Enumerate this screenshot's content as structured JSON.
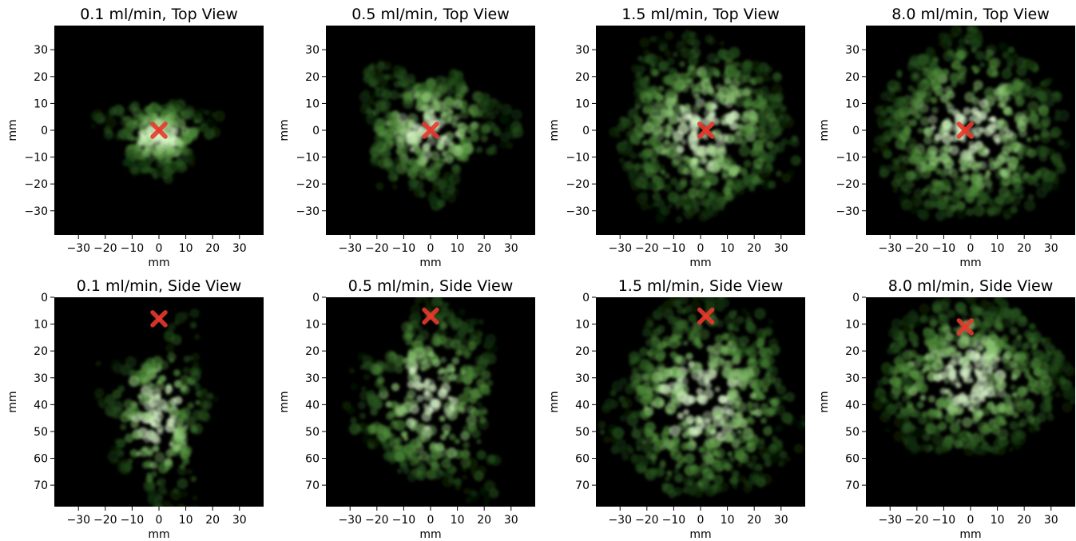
{
  "figure": {
    "background": "#ffffff",
    "panel_background": "#000000",
    "plume_colors": [
      "#0f2c0a",
      "#27541e",
      "#4f8c3a",
      "#8fc876",
      "#d9f5c9"
    ],
    "marker_color": "#e8392b",
    "marker_symbol": "X"
  },
  "chart_data": [
    {
      "type": "heatmap",
      "view": "top",
      "title": "0.1 ml/min, Top View",
      "xlabel": "mm",
      "ylabel": "mm",
      "xlim": [
        -39,
        39
      ],
      "ylim": [
        -39,
        39
      ],
      "y_inverted": false,
      "xticks": [
        -30,
        -20,
        -10,
        0,
        10,
        20,
        30
      ],
      "yticks": [
        30,
        20,
        10,
        0,
        -10,
        -20,
        -30
      ],
      "xtick_labels": [
        "−30",
        "−20",
        "−10",
        "0",
        "10",
        "20",
        "30"
      ],
      "ytick_labels": [
        "30",
        "20",
        "10",
        "0",
        "−10",
        "−20",
        "−30"
      ],
      "marker": [
        0,
        0
      ],
      "grid": false,
      "plume": {
        "cx": 0,
        "cy": -2,
        "rx": 18,
        "ry": 14,
        "irregularity": 0.85,
        "density": 0.55
      }
    },
    {
      "type": "heatmap",
      "view": "top",
      "title": "0.5 ml/min, Top View",
      "xlabel": "mm",
      "ylabel": "mm",
      "xlim": [
        -39,
        39
      ],
      "ylim": [
        -39,
        39
      ],
      "y_inverted": false,
      "xticks": [
        -30,
        -20,
        -10,
        0,
        10,
        20,
        30
      ],
      "yticks": [
        30,
        20,
        10,
        0,
        -10,
        -20,
        -30
      ],
      "xtick_labels": [
        "−30",
        "−20",
        "−10",
        "0",
        "10",
        "20",
        "30"
      ],
      "ytick_labels": [
        "30",
        "20",
        "10",
        "0",
        "−10",
        "−20",
        "−30"
      ],
      "marker": [
        0,
        0
      ],
      "grid": false,
      "plume": {
        "cx": 0,
        "cy": 0,
        "rx": 27,
        "ry": 23,
        "irregularity": 0.6,
        "density": 0.8
      }
    },
    {
      "type": "heatmap",
      "view": "top",
      "title": "1.5 ml/min, Top View",
      "xlabel": "mm",
      "ylabel": "mm",
      "xlim": [
        -39,
        39
      ],
      "ylim": [
        -39,
        39
      ],
      "y_inverted": false,
      "xticks": [
        -30,
        -20,
        -10,
        0,
        10,
        20,
        30
      ],
      "yticks": [
        30,
        20,
        10,
        0,
        -10,
        -20,
        -30
      ],
      "xtick_labels": [
        "−30",
        "−20",
        "−10",
        "0",
        "10",
        "20",
        "30"
      ],
      "ytick_labels": [
        "30",
        "20",
        "10",
        "0",
        "−10",
        "−20",
        "−30"
      ],
      "marker": [
        2,
        0
      ],
      "grid": false,
      "plume": {
        "cx": 1,
        "cy": 1,
        "rx": 33,
        "ry": 34,
        "irregularity": 0.3,
        "density": 1.0
      }
    },
    {
      "type": "heatmap",
      "view": "top",
      "title": "8.0 ml/min, Top View",
      "xlabel": "mm",
      "ylabel": "mm",
      "xlim": [
        -39,
        39
      ],
      "ylim": [
        -39,
        39
      ],
      "y_inverted": false,
      "xticks": [
        -30,
        -20,
        -10,
        0,
        10,
        20,
        30
      ],
      "yticks": [
        30,
        20,
        10,
        0,
        -10,
        -20,
        -30
      ],
      "xtick_labels": [
        "−30",
        "−20",
        "−10",
        "0",
        "10",
        "20",
        "30"
      ],
      "ytick_labels": [
        "30",
        "20",
        "10",
        "0",
        "−10",
        "−20",
        "−30"
      ],
      "marker": [
        -2,
        0
      ],
      "grid": false,
      "plume": {
        "cx": 0,
        "cy": 0,
        "rx": 36,
        "ry": 35,
        "irregularity": 0.15,
        "density": 1.0
      }
    },
    {
      "type": "heatmap",
      "view": "side",
      "title": "0.1 ml/min, Side View",
      "xlabel": "mm",
      "ylabel": "mm",
      "xlim": [
        -39,
        39
      ],
      "ylim": [
        78,
        0
      ],
      "y_inverted": true,
      "xticks": [
        -30,
        -20,
        -10,
        0,
        10,
        20,
        30
      ],
      "yticks": [
        0,
        10,
        20,
        30,
        40,
        50,
        60,
        70
      ],
      "xtick_labels": [
        "−30",
        "−20",
        "−10",
        "0",
        "10",
        "20",
        "30"
      ],
      "ytick_labels": [
        "0",
        "10",
        "20",
        "30",
        "40",
        "50",
        "60",
        "70"
      ],
      "marker": [
        0,
        8
      ],
      "grid": false,
      "plume": {
        "cx": 0,
        "cy": 45,
        "rx": 19,
        "ry": 33,
        "irregularity": 0.85,
        "density": 0.55
      }
    },
    {
      "type": "heatmap",
      "view": "side",
      "title": "0.5 ml/min, Side View",
      "xlabel": "mm",
      "ylabel": "mm",
      "xlim": [
        -39,
        39
      ],
      "ylim": [
        78,
        0
      ],
      "y_inverted": true,
      "xticks": [
        -30,
        -20,
        -10,
        0,
        10,
        20,
        30
      ],
      "yticks": [
        0,
        10,
        20,
        30,
        40,
        50,
        60,
        70
      ],
      "xtick_labels": [
        "−30",
        "−20",
        "−10",
        "0",
        "10",
        "20",
        "30"
      ],
      "ytick_labels": [
        "0",
        "10",
        "20",
        "30",
        "40",
        "50",
        "60",
        "70"
      ],
      "marker": [
        0,
        7
      ],
      "grid": false,
      "plume": {
        "cx": 0,
        "cy": 38,
        "rx": 27,
        "ry": 35,
        "irregularity": 0.6,
        "density": 0.8
      }
    },
    {
      "type": "heatmap",
      "view": "side",
      "title": "1.5 ml/min, Side View",
      "xlabel": "mm",
      "ylabel": "mm",
      "xlim": [
        -39,
        39
      ],
      "ylim": [
        78,
        0
      ],
      "y_inverted": true,
      "xticks": [
        -30,
        -20,
        -10,
        0,
        10,
        20,
        30
      ],
      "yticks": [
        0,
        10,
        20,
        30,
        40,
        50,
        60,
        70
      ],
      "xtick_labels": [
        "−30",
        "−20",
        "−10",
        "0",
        "10",
        "20",
        "30"
      ],
      "ytick_labels": [
        "0",
        "10",
        "20",
        "30",
        "40",
        "50",
        "60",
        "70"
      ],
      "marker": [
        2,
        7
      ],
      "grid": false,
      "plume": {
        "cx": 1,
        "cy": 38,
        "rx": 35,
        "ry": 38,
        "irregularity": 0.3,
        "density": 1.0
      }
    },
    {
      "type": "heatmap",
      "view": "side",
      "title": "8.0 ml/min, Side View",
      "xlabel": "mm",
      "ylabel": "mm",
      "xlim": [
        -39,
        39
      ],
      "ylim": [
        78,
        0
      ],
      "y_inverted": true,
      "xticks": [
        -30,
        -20,
        -10,
        0,
        10,
        20,
        30
      ],
      "yticks": [
        0,
        10,
        20,
        30,
        40,
        50,
        60,
        70
      ],
      "xtick_labels": [
        "−30",
        "−20",
        "−10",
        "0",
        "10",
        "20",
        "30"
      ],
      "ytick_labels": [
        "0",
        "10",
        "20",
        "30",
        "40",
        "50",
        "60",
        "70"
      ],
      "marker": [
        -2,
        11
      ],
      "grid": false,
      "plume": {
        "cx": 0,
        "cy": 30,
        "rx": 36,
        "ry": 30,
        "irregularity": 0.2,
        "density": 1.0
      }
    }
  ]
}
